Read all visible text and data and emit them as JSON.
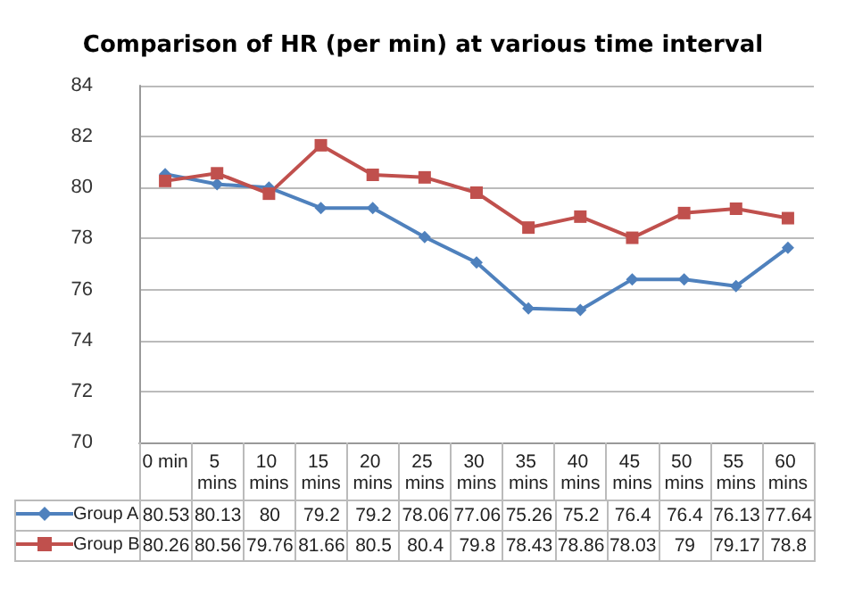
{
  "chart_data": {
    "type": "line",
    "title": "Comparison of HR (per min) at various time interval",
    "categories": [
      "0 min",
      "5 mins",
      "10 mins",
      "15 mins",
      "20 mins",
      "25 mins",
      "30 mins",
      "35 mins",
      "40 mins",
      "45 mins",
      "50 mins",
      "55 mins",
      "60 mins"
    ],
    "series": [
      {
        "name": "Group A",
        "color": "#4f81bd",
        "marker": "diamond",
        "values": [
          80.53,
          80.13,
          80,
          79.2,
          79.2,
          78.06,
          77.06,
          75.26,
          75.2,
          76.4,
          76.4,
          76.13,
          77.64
        ]
      },
      {
        "name": "Group B",
        "color": "#c0504d",
        "marker": "square",
        "values": [
          80.26,
          80.56,
          79.76,
          81.66,
          80.5,
          80.4,
          79.8,
          78.43,
          78.86,
          78.03,
          79,
          79.17,
          78.8
        ]
      }
    ],
    "ylim": [
      70,
      84
    ],
    "yticks": [
      70,
      72,
      74,
      76,
      78,
      80,
      82,
      84
    ],
    "grid": "y",
    "data_labels": true,
    "legend": "bottom"
  }
}
